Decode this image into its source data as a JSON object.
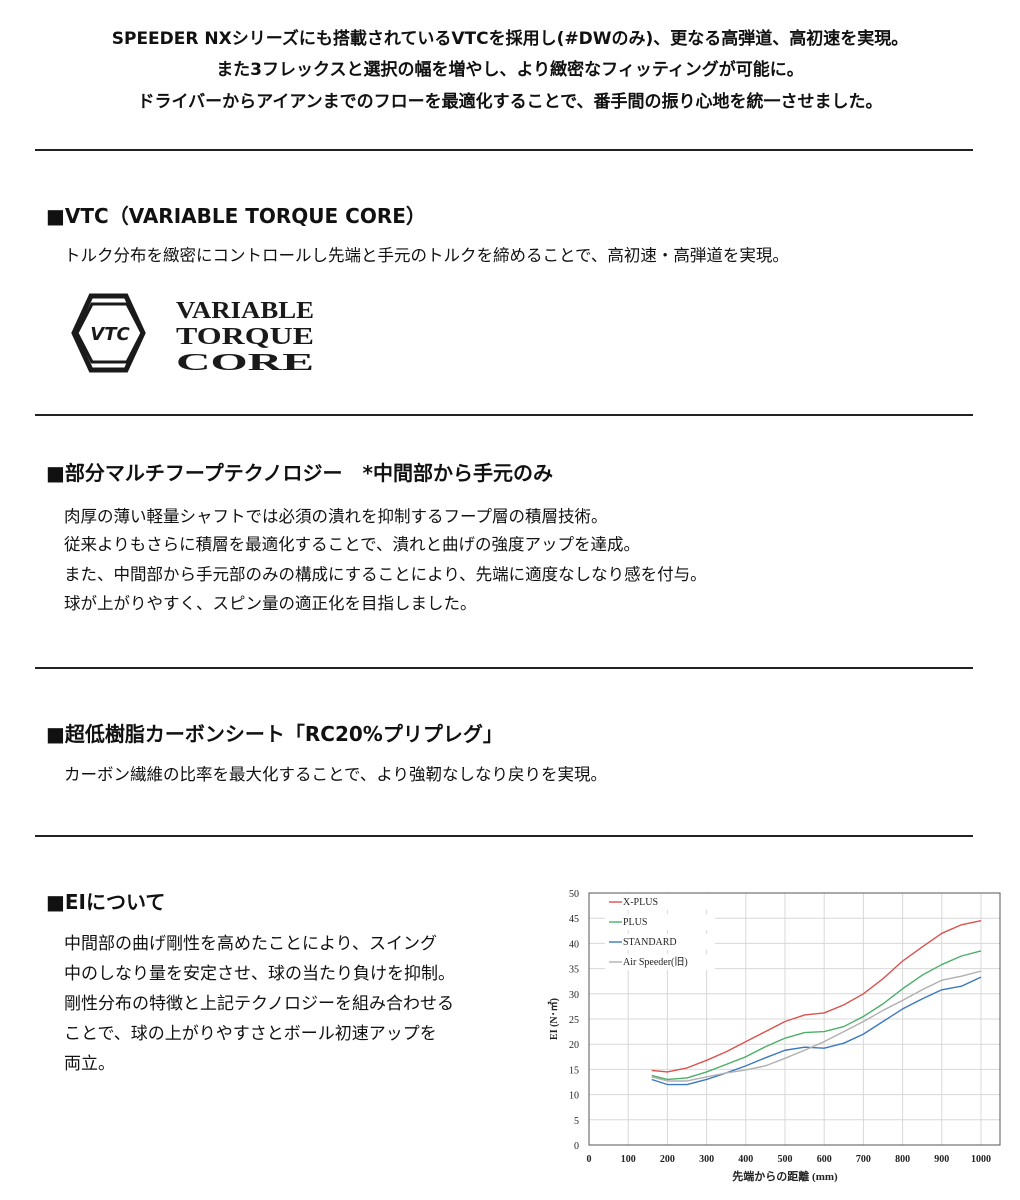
{
  "intro": [
    "SPEEDER NXシリーズにも搭載されているVTCを採用し(#DWのみ)、更なる高弾道、高初速を実現。",
    "また3フレックスと選択の幅を増やし、より緻密なフィッティングが可能に。",
    "ドライバーからアイアンまでのフローを最適化することで、番手間の振り心地を統一させました。"
  ],
  "sections": [
    {
      "heading": "■VTC（VARIABLE TORQUE CORE）",
      "body": [
        "トルク分布を緻密にコントロールし先端と手元のトルクを締めることで、高初速・高弾道を実現。"
      ]
    },
    {
      "heading": "■部分マルチフープテクノロジー　*中間部から手元のみ",
      "body": [
        "肉厚の薄い軽量シャフトでは必須の潰れを抑制するフープ層の積層技術。",
        "従来よりもさらに積層を最適化することで、潰れと曲げの強度アップを達成。",
        "また、中間部から手元部のみの構成にすることにより、先端に適度なしなり感を付与。",
        "球が上がりやすく、スピン量の適正化を目指しました。"
      ]
    },
    {
      "heading": "■超低樹脂カーボンシート「RC20%プリプレグ」",
      "body": [
        "カーボン繊維の比率を最大化することで、より強靭なしなり戻りを実現。"
      ]
    },
    {
      "heading": "■EIについて",
      "body": [
        "中間部の曲げ剛性を高めたことにより、スイング",
        "中のしなり量を安定させ、球の当たり負けを抑制。",
        "剛性分布の特徴と上記テクノロジーを組み合わせる",
        "ことで、球の上がりやすさとボール初速アップを",
        "両立。"
      ]
    }
  ],
  "logo": {
    "mark": "VTC",
    "lines": [
      "VARIABLE",
      "TORQUE",
      "CORE"
    ]
  },
  "chart_data": {
    "type": "line",
    "xlabel": "先端からの距離 (mm)",
    "ylabel": "EI (N･㎡)",
    "xlim": [
      0,
      1000
    ],
    "ylim": [
      0,
      50
    ],
    "xticks": [
      "0",
      "100",
      "200",
      "300",
      "400",
      "500",
      "600",
      "700",
      "800",
      "900",
      "1000"
    ],
    "yticks": [
      "0",
      "5",
      "10",
      "15",
      "20",
      "25",
      "30",
      "35",
      "40",
      "45",
      "50"
    ],
    "grid": true,
    "legend": "top-left",
    "x": [
      160,
      200,
      250,
      300,
      350,
      400,
      450,
      500,
      550,
      600,
      650,
      700,
      750,
      800,
      850,
      900,
      950,
      1000
    ],
    "series": [
      {
        "name": "X-PLUS",
        "color": "#d9534f",
        "values": [
          14.8,
          14.5,
          15.3,
          16.8,
          18.5,
          20.5,
          22.5,
          24.5,
          25.8,
          26.2,
          27.8,
          30,
          33,
          36.5,
          39.3,
          42,
          43.7,
          44.5
        ]
      },
      {
        "name": "PLUS",
        "color": "#4caf6a",
        "values": [
          13.8,
          13,
          13.3,
          14.5,
          16,
          17.5,
          19.5,
          21.2,
          22.3,
          22.5,
          23.5,
          25.5,
          28,
          31,
          33.7,
          35.8,
          37.5,
          38.5
        ]
      },
      {
        "name": "STANDARD",
        "color": "#3a78c2",
        "values": [
          13,
          12,
          12,
          13,
          14.3,
          15.7,
          17.3,
          18.8,
          19.4,
          19.2,
          20.2,
          22,
          24.5,
          27,
          29,
          30.8,
          31.5,
          33.3
        ]
      },
      {
        "name": "Air Speeder(旧)",
        "color": "#b0b0b0",
        "values": [
          13.5,
          12.7,
          12.7,
          13.5,
          14.3,
          14.9,
          15.7,
          17.2,
          18.8,
          20.5,
          22.5,
          24.5,
          26.7,
          28.7,
          30.8,
          32.7,
          33.5,
          34.5
        ]
      }
    ]
  }
}
